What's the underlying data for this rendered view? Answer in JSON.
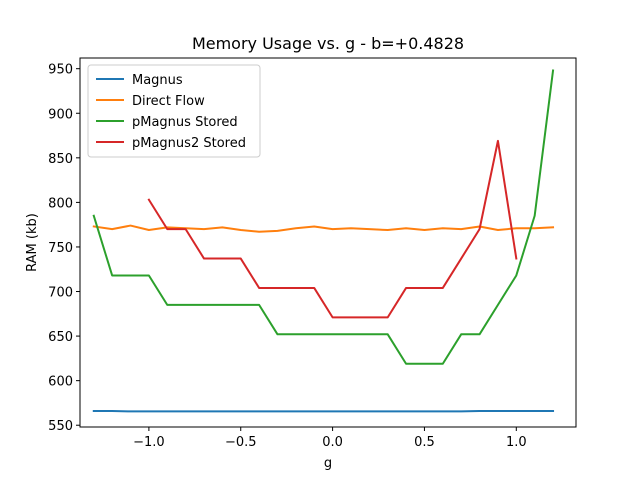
{
  "chart_data": {
    "type": "line",
    "title": "Memory Usage vs. g - b=+0.4828",
    "xlabel": "g",
    "ylabel": "RAM (kb)",
    "xlim": [
      -1.375,
      1.325
    ],
    "ylim": [
      548,
      962
    ],
    "xticks": [
      -1.0,
      -0.5,
      0.0,
      0.5,
      1.0
    ],
    "xtick_labels": [
      "−1.0",
      "−0.5",
      "0.0",
      "0.5",
      "1.0"
    ],
    "yticks": [
      550,
      600,
      650,
      700,
      750,
      800,
      850,
      900,
      950
    ],
    "ytick_labels": [
      "550",
      "600",
      "650",
      "700",
      "750",
      "800",
      "850",
      "900",
      "950"
    ],
    "legend_position": "top-left",
    "grid": false,
    "series": [
      {
        "name": "Magnus",
        "color": "#1f77b4",
        "x": [
          -1.3,
          -1.2,
          -1.1,
          -1.0,
          -0.9,
          -0.8,
          -0.7,
          -0.6,
          -0.5,
          -0.4,
          -0.3,
          -0.2,
          -0.1,
          0.0,
          0.1,
          0.2,
          0.3,
          0.4,
          0.5,
          0.6,
          0.7,
          0.8,
          0.9,
          1.0,
          1.1,
          1.2
        ],
        "y": [
          566,
          566,
          565.5,
          565.5,
          565.5,
          565.5,
          565.5,
          565.5,
          565.5,
          565.5,
          565.5,
          565.5,
          565.5,
          565.5,
          565.5,
          565.5,
          565.5,
          565.5,
          565.5,
          565.5,
          565.5,
          566,
          566,
          566,
          566,
          566
        ]
      },
      {
        "name": "Direct Flow",
        "color": "#ff7f0e",
        "x": [
          -1.3,
          -1.2,
          -1.1,
          -1.0,
          -0.9,
          -0.8,
          -0.7,
          -0.6,
          -0.5,
          -0.4,
          -0.3,
          -0.2,
          -0.1,
          0.0,
          0.1,
          0.2,
          0.3,
          0.4,
          0.5,
          0.6,
          0.7,
          0.8,
          0.9,
          1.0,
          1.1,
          1.2
        ],
        "y": [
          773,
          770,
          774,
          769,
          772,
          771,
          770,
          772,
          769,
          767,
          768,
          771,
          773,
          770,
          771,
          770,
          769,
          771,
          769,
          771,
          770,
          773,
          769,
          771,
          771,
          772
        ]
      },
      {
        "name": "pMagnus Stored",
        "color": "#2ca02c",
        "x": [
          -1.3,
          -1.2,
          -1.1,
          -1.0,
          -0.9,
          -0.8,
          -0.7,
          -0.6,
          -0.5,
          -0.4,
          -0.3,
          -0.2,
          -0.1,
          0.0,
          0.1,
          0.2,
          0.3,
          0.4,
          0.5,
          0.6,
          0.7,
          0.8,
          0.9,
          1.0,
          1.1,
          1.2
        ],
        "y": [
          785,
          718,
          718,
          718,
          685,
          685,
          685,
          685,
          685,
          685,
          652,
          652,
          652,
          652,
          652,
          652,
          652,
          619,
          619,
          619,
          652,
          652,
          685,
          718,
          785,
          948
        ]
      },
      {
        "name": "pMagnus2 Stored",
        "color": "#d62728",
        "x": [
          -1.0,
          -0.9,
          -0.8,
          -0.7,
          -0.6,
          -0.5,
          -0.4,
          -0.3,
          -0.2,
          -0.1,
          0.0,
          0.1,
          0.2,
          0.3,
          0.4,
          0.5,
          0.6,
          0.7,
          0.8,
          0.9,
          1.0
        ],
        "y": [
          803,
          770,
          770,
          737,
          737,
          737,
          704,
          704,
          704,
          704,
          671,
          671,
          671,
          671,
          704,
          704,
          704,
          737,
          770,
          869,
          737
        ]
      }
    ]
  }
}
